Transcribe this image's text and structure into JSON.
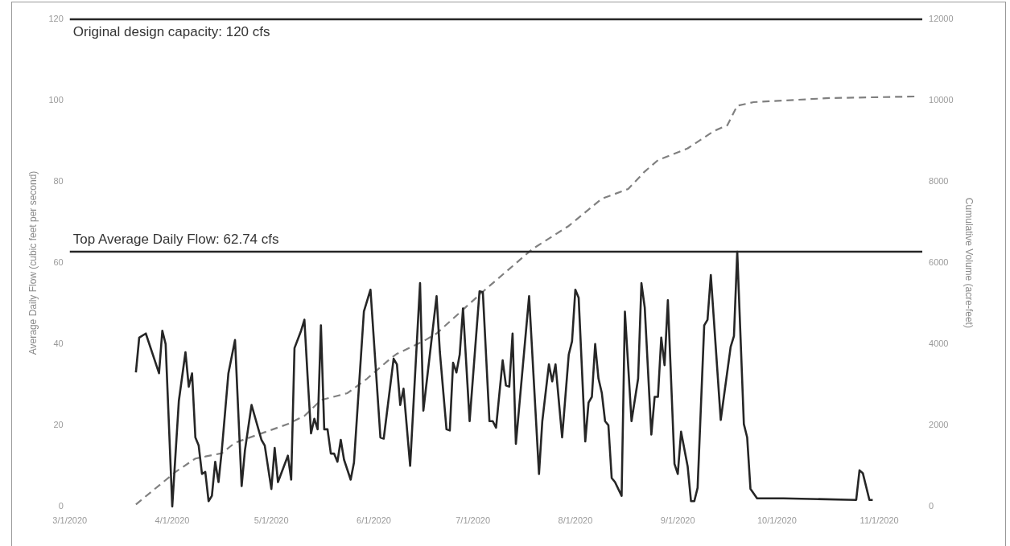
{
  "chart_data": {
    "type": "line",
    "ylabel": "Average Daily Flow (cubic feet per second)",
    "y2label": "Cumulative Volume (acre-feet)",
    "xlim": [
      "2020-03-01",
      "2020-11-14"
    ],
    "xticks": [
      {
        "value": "2020-03-01",
        "label": "3/1/2020"
      },
      {
        "value": "2020-04-01",
        "label": "4/1/2020"
      },
      {
        "value": "2020-05-01",
        "label": "5/1/2020"
      },
      {
        "value": "2020-06-01",
        "label": "6/1/2020"
      },
      {
        "value": "2020-07-01",
        "label": "7/1/2020"
      },
      {
        "value": "2020-08-01",
        "label": "8/1/2020"
      },
      {
        "value": "2020-09-01",
        "label": "9/1/2020"
      },
      {
        "value": "2020-10-01",
        "label": "10/1/2020"
      },
      {
        "value": "2020-11-01",
        "label": "11/1/2020"
      }
    ],
    "ylim": [
      0,
      120
    ],
    "yticks": [
      0,
      20,
      40,
      60,
      80,
      100,
      120
    ],
    "y2lim": [
      0,
      12000
    ],
    "y2ticks": [
      0,
      2000,
      4000,
      6000,
      8000,
      10000,
      12000
    ],
    "legend": false,
    "ref_lines": [
      {
        "axis": "y",
        "value": 120,
        "label": "Original design capacity: 120 cfs",
        "color": "#262626"
      },
      {
        "axis": "y",
        "value": 62.74,
        "label": "Top Average Daily Flow: 62.74 cfs",
        "color": "#262626"
      }
    ],
    "series": [
      {
        "color": "#262626",
        "line_style": "solid",
        "x": [
          "2020-03-21",
          "2020-03-22",
          "2020-03-24",
          "2020-03-28",
          "2020-03-29",
          "2020-03-30",
          "2020-04-01",
          "2020-04-03",
          "2020-04-05",
          "2020-04-06",
          "2020-04-07",
          "2020-04-08",
          "2020-04-09",
          "2020-04-10",
          "2020-04-11",
          "2020-04-12",
          "2020-04-13",
          "2020-04-14",
          "2020-04-15",
          "2020-04-16",
          "2020-04-18",
          "2020-04-20",
          "2020-04-22",
          "2020-04-23",
          "2020-04-25",
          "2020-04-28",
          "2020-04-29",
          "2020-05-01",
          "2020-05-02",
          "2020-05-03",
          "2020-05-06",
          "2020-05-07",
          "2020-05-08",
          "2020-05-10",
          "2020-05-11",
          "2020-05-12",
          "2020-05-13",
          "2020-05-14",
          "2020-05-15",
          "2020-05-16",
          "2020-05-17",
          "2020-05-18",
          "2020-05-19",
          "2020-05-20",
          "2020-05-21",
          "2020-05-22",
          "2020-05-23",
          "2020-05-25",
          "2020-05-26",
          "2020-05-29",
          "2020-05-31",
          "2020-06-03",
          "2020-06-04",
          "2020-06-07",
          "2020-06-08",
          "2020-06-09",
          "2020-06-10",
          "2020-06-12",
          "2020-06-15",
          "2020-06-16",
          "2020-06-20",
          "2020-06-21",
          "2020-06-23",
          "2020-06-24",
          "2020-06-25",
          "2020-06-26",
          "2020-06-27",
          "2020-06-28",
          "2020-06-30",
          "2020-07-03",
          "2020-07-04",
          "2020-07-06",
          "2020-07-07",
          "2020-07-08",
          "2020-07-10",
          "2020-07-11",
          "2020-07-12",
          "2020-07-13",
          "2020-07-14",
          "2020-07-18",
          "2020-07-21",
          "2020-07-22",
          "2020-07-24",
          "2020-07-25",
          "2020-07-26",
          "2020-07-28",
          "2020-07-30",
          "2020-07-31",
          "2020-08-01",
          "2020-08-02",
          "2020-08-04",
          "2020-08-05",
          "2020-08-06",
          "2020-08-07",
          "2020-08-08",
          "2020-08-09",
          "2020-08-10",
          "2020-08-11",
          "2020-08-12",
          "2020-08-13",
          "2020-08-15",
          "2020-08-16",
          "2020-08-18",
          "2020-08-20",
          "2020-08-21",
          "2020-08-22",
          "2020-08-24",
          "2020-08-25",
          "2020-08-26",
          "2020-08-27",
          "2020-08-28",
          "2020-08-29",
          "2020-08-31",
          "2020-09-01",
          "2020-09-02",
          "2020-09-04",
          "2020-09-05",
          "2020-09-06",
          "2020-09-07",
          "2020-09-09",
          "2020-09-10",
          "2020-09-11",
          "2020-09-14",
          "2020-09-17",
          "2020-09-18",
          "2020-09-19",
          "2020-09-21",
          "2020-09-22",
          "2020-09-23",
          "2020-09-25",
          "2020-10-03",
          "2020-10-25",
          "2020-10-26",
          "2020-10-27",
          "2020-10-29",
          "2020-10-30"
        ],
        "values": [
          33,
          41.6,
          42.6,
          32.8,
          43.3,
          40,
          0,
          26,
          38,
          29.5,
          32.8,
          17,
          15,
          8,
          8.5,
          1.3,
          2.6,
          11,
          6,
          13.8,
          32.8,
          41,
          5,
          13.8,
          25,
          16.4,
          15,
          4.3,
          14.4,
          6,
          12.5,
          6.6,
          39,
          43.3,
          46,
          31.5,
          18,
          21.6,
          19,
          44.6,
          19,
          19,
          13,
          13,
          11,
          16.4,
          11.5,
          6.6,
          10.8,
          48,
          53.4,
          17,
          16.7,
          36.4,
          35,
          25,
          29,
          10,
          55,
          23.6,
          51.8,
          38,
          19,
          18.7,
          35.4,
          33,
          37.4,
          48.8,
          21,
          53,
          52.8,
          21,
          21,
          19.4,
          36,
          29.8,
          29.5,
          42.6,
          15.4,
          51.8,
          8,
          21,
          35,
          30.8,
          35,
          17,
          37.4,
          40.7,
          53.4,
          51.4,
          16,
          25.6,
          27,
          40,
          31.5,
          28,
          21,
          20,
          7,
          6,
          2.6,
          48,
          21,
          31.5,
          55,
          49,
          17.7,
          27,
          27,
          41.6,
          34.8,
          50.8,
          10.5,
          8,
          18.4,
          9.8,
          1.3,
          1.3,
          4.6,
          44.6,
          46,
          57,
          21.3,
          39.3,
          42,
          62.74,
          20.3,
          17,
          4.3,
          2,
          2,
          1.6,
          8.9,
          8.2,
          1.6,
          1.6
        ]
      },
      {
        "color": "#808080",
        "line_style": "dashed",
        "axis": "y2",
        "x": [
          "2020-03-21",
          "2020-04-02",
          "2020-04-08",
          "2020-04-16",
          "2020-04-20",
          "2020-05-06",
          "2020-05-11",
          "2020-05-16",
          "2020-05-24",
          "2020-05-30",
          "2020-06-06",
          "2020-06-08",
          "2020-06-16",
          "2020-06-20",
          "2020-07-04",
          "2020-07-19",
          "2020-07-30",
          "2020-08-09",
          "2020-08-17",
          "2020-08-22",
          "2020-08-26",
          "2020-09-04",
          "2020-09-12",
          "2020-09-16",
          "2020-09-19",
          "2020-09-24",
          "2020-10-17",
          "2020-11-13"
        ],
        "values": [
          50,
          850,
          1180,
          1310,
          1570,
          2030,
          2230,
          2620,
          2790,
          3150,
          3640,
          3760,
          4070,
          4260,
          5290,
          6340,
          6910,
          7580,
          7820,
          8250,
          8530,
          8820,
          9250,
          9390,
          9870,
          9960,
          10060,
          10100
        ]
      }
    ]
  }
}
